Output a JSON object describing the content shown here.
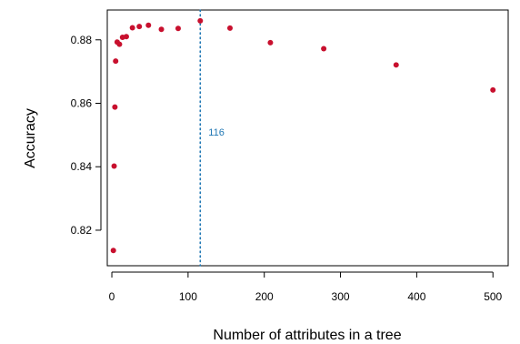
{
  "chart_data": {
    "type": "scatter",
    "xlabel": "Number of attributes in a tree",
    "ylabel": "Accuracy",
    "xlim": [
      -6,
      520
    ],
    "ylim": [
      0.8088,
      0.8894
    ],
    "x_ticks": [
      0,
      100,
      200,
      300,
      400,
      500
    ],
    "y_ticks": [
      0.82,
      0.84,
      0.86,
      0.88
    ],
    "x_tick_labels": [
      "0",
      "100",
      "200",
      "300",
      "400",
      "500"
    ],
    "y_tick_labels": [
      "0.82",
      "0.84",
      "0.86",
      "0.88"
    ],
    "grid": false,
    "point_color": "#c8102e",
    "line_color": "#1f77b4",
    "reference_line": {
      "x": 116,
      "label": "116"
    },
    "points": [
      {
        "x": 2,
        "y": 0.8136
      },
      {
        "x": 3,
        "y": 0.8402
      },
      {
        "x": 4,
        "y": 0.8588
      },
      {
        "x": 5,
        "y": 0.8733
      },
      {
        "x": 7,
        "y": 0.8793
      },
      {
        "x": 10,
        "y": 0.8786
      },
      {
        "x": 14,
        "y": 0.8808
      },
      {
        "x": 19,
        "y": 0.881
      },
      {
        "x": 27,
        "y": 0.8838
      },
      {
        "x": 36,
        "y": 0.8842
      },
      {
        "x": 48,
        "y": 0.8846
      },
      {
        "x": 65,
        "y": 0.8833
      },
      {
        "x": 87,
        "y": 0.8836
      },
      {
        "x": 116,
        "y": 0.886
      },
      {
        "x": 155,
        "y": 0.8837
      },
      {
        "x": 208,
        "y": 0.8791
      },
      {
        "x": 278,
        "y": 0.8772
      },
      {
        "x": 373,
        "y": 0.8721
      },
      {
        "x": 500,
        "y": 0.8642
      }
    ]
  }
}
